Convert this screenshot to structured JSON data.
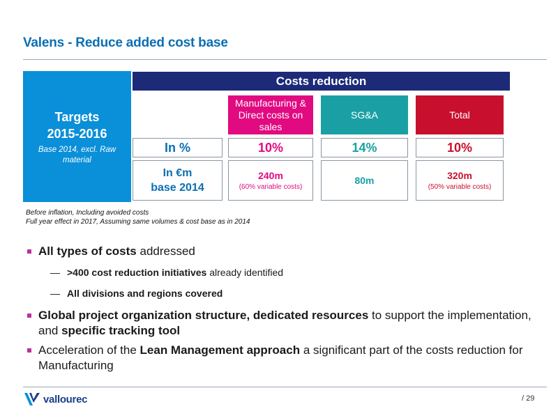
{
  "title": "Valens - Reduce added cost base",
  "targets": {
    "heading_line1": "Targets",
    "heading_line2": "2015-2016",
    "subtext": "Base 2014, excl. Raw material"
  },
  "costs_reduction_header": "Costs reduction",
  "columns": {
    "manufacturing": {
      "label": "Manufacturing & Direct costs on sales",
      "percent": "10%",
      "amount": "240m",
      "note": "(60% variable costs)",
      "color": "#e20a80"
    },
    "sga": {
      "label": "SG&A",
      "percent": "14%",
      "amount": "80m",
      "color": "#1aa0a4"
    },
    "total": {
      "label": "Total",
      "percent": "10%",
      "amount": "320m",
      "note": "(50% variable costs)",
      "color": "#c8102e"
    }
  },
  "row_labels": {
    "percent": "In %",
    "millions_line1": "In €m",
    "millions_line2": "base 2014"
  },
  "notes": {
    "line1": "Before inflation, Including avoided costs",
    "line2": "Full year effect in 2017, Assuming same volumes & cost base as in 2014"
  },
  "bullets": {
    "b1_bold": "All types of costs",
    "b1_rest": " addressed",
    "b1_sub1_dash": "—",
    "b1_sub1_bold": ">400 cost reduction initiatives",
    "b1_sub1_rest": " already identified",
    "b1_sub2_dash": "—",
    "b1_sub2_bold": "All divisions and regions covered",
    "b2_bold1": "Global project organization structure, dedicated resources",
    "b2_rest1": " to support the implementation, and ",
    "b2_bold2": "specific tracking tool",
    "b3_text1": "Acceleration of the ",
    "b3_bold": "Lean Management approach",
    "b3_text2": " a significant part of the costs reduction for Manufacturing"
  },
  "footer": {
    "logo_text": "vallourec",
    "page_number": "/ 29"
  },
  "colors": {
    "title_blue": "#0a6fb4",
    "targets_blue": "#0a8fd9",
    "header_navy": "#1c2a78",
    "bullet_purple": "#b5339a"
  }
}
